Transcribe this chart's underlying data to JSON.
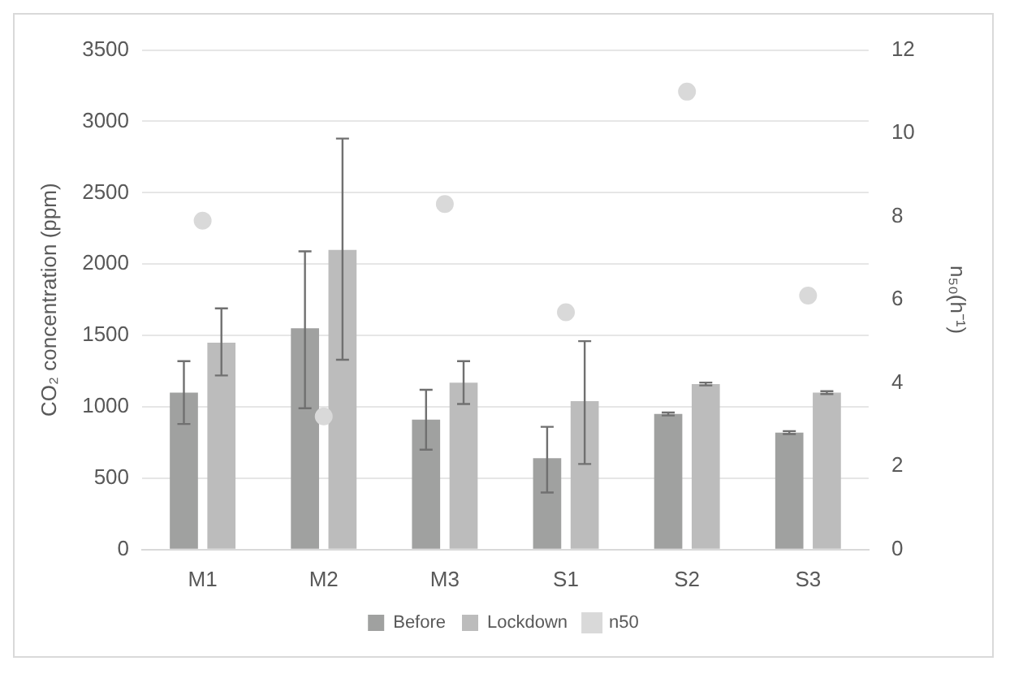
{
  "chart_data": {
    "type": "bar",
    "categories": [
      "M1",
      "M2",
      "M3",
      "S1",
      "S2",
      "S3"
    ],
    "ylabel": "CO₂ concentration (ppm)",
    "y2label": "n₅₀(h⁻¹)",
    "series": [
      {
        "name": "Before",
        "color": "#a0a1a0",
        "values": [
          1100,
          1550,
          910,
          640,
          950,
          820
        ],
        "errors": [
          [
            880,
            1320
          ],
          [
            990,
            2090
          ],
          [
            700,
            1120
          ],
          [
            400,
            860
          ],
          [
            940,
            960
          ],
          [
            810,
            830
          ]
        ]
      },
      {
        "name": "Lockdown",
        "color": "#bcbcbc",
        "values": [
          1450,
          2100,
          1170,
          1040,
          1160,
          1100
        ],
        "errors": [
          [
            1220,
            1690
          ],
          [
            1330,
            2880
          ],
          [
            1020,
            1320
          ],
          [
            600,
            1460
          ],
          [
            1150,
            1170
          ],
          [
            1090,
            1110
          ]
        ]
      },
      {
        "name": "n50",
        "type": "scatter",
        "axis": "y2",
        "color": "#d9d9d9",
        "x": [
          "M1",
          "M2",
          "M3",
          "S1",
          "S2",
          "S3"
        ],
        "values": [
          7.9,
          3.2,
          8.3,
          5.7,
          11.0,
          6.1
        ]
      }
    ],
    "ylim": [
      0,
      3500
    ],
    "yticks": [
      0,
      500,
      1000,
      1500,
      2000,
      2500,
      3000,
      3500
    ],
    "y2lim": [
      0,
      12
    ],
    "y2ticks": [
      0,
      2,
      4,
      6,
      8,
      10,
      12
    ],
    "grid": "y",
    "legend": "bottom",
    "marker": "circle"
  }
}
